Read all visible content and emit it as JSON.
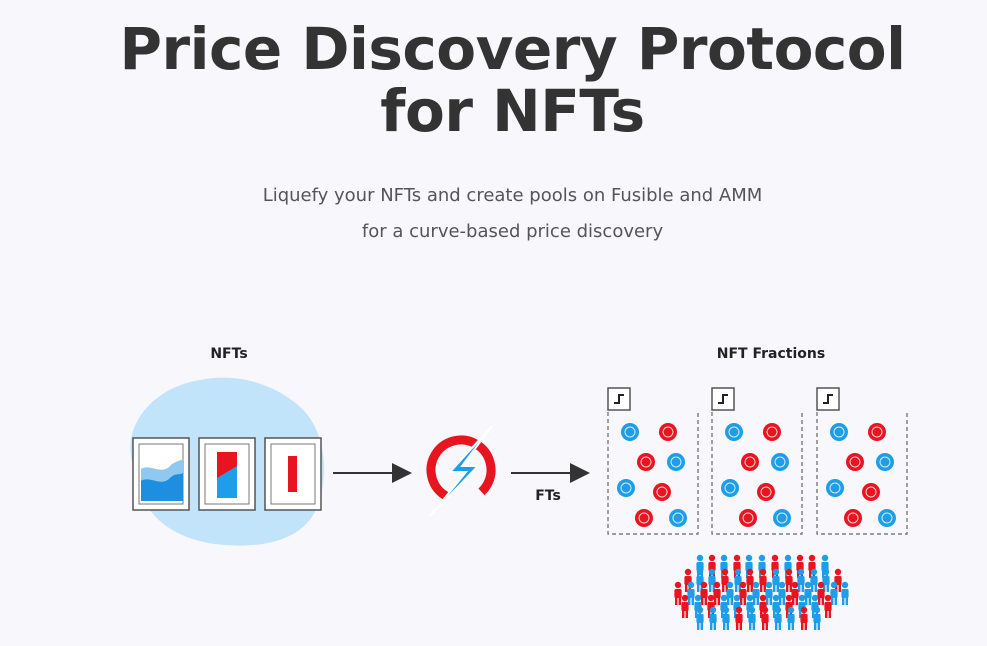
{
  "hero": {
    "title_line1": "Price Discovery Protocol",
    "title_line2": "for NFTs",
    "subtitle_line1": "Liquefy your NFTs and create pools on Fusible and AMM",
    "subtitle_line2": "for a curve-based price discovery"
  },
  "diagram": {
    "nfts_label": "NFTs",
    "fractions_label": "NFT Fractions",
    "arrow_label": "FTs",
    "colors": {
      "blue": "#1e9ee8",
      "red": "#e8141f",
      "cloud": "#c2e4fb",
      "frame": "#dcdcdc",
      "ink": "#333333"
    }
  }
}
